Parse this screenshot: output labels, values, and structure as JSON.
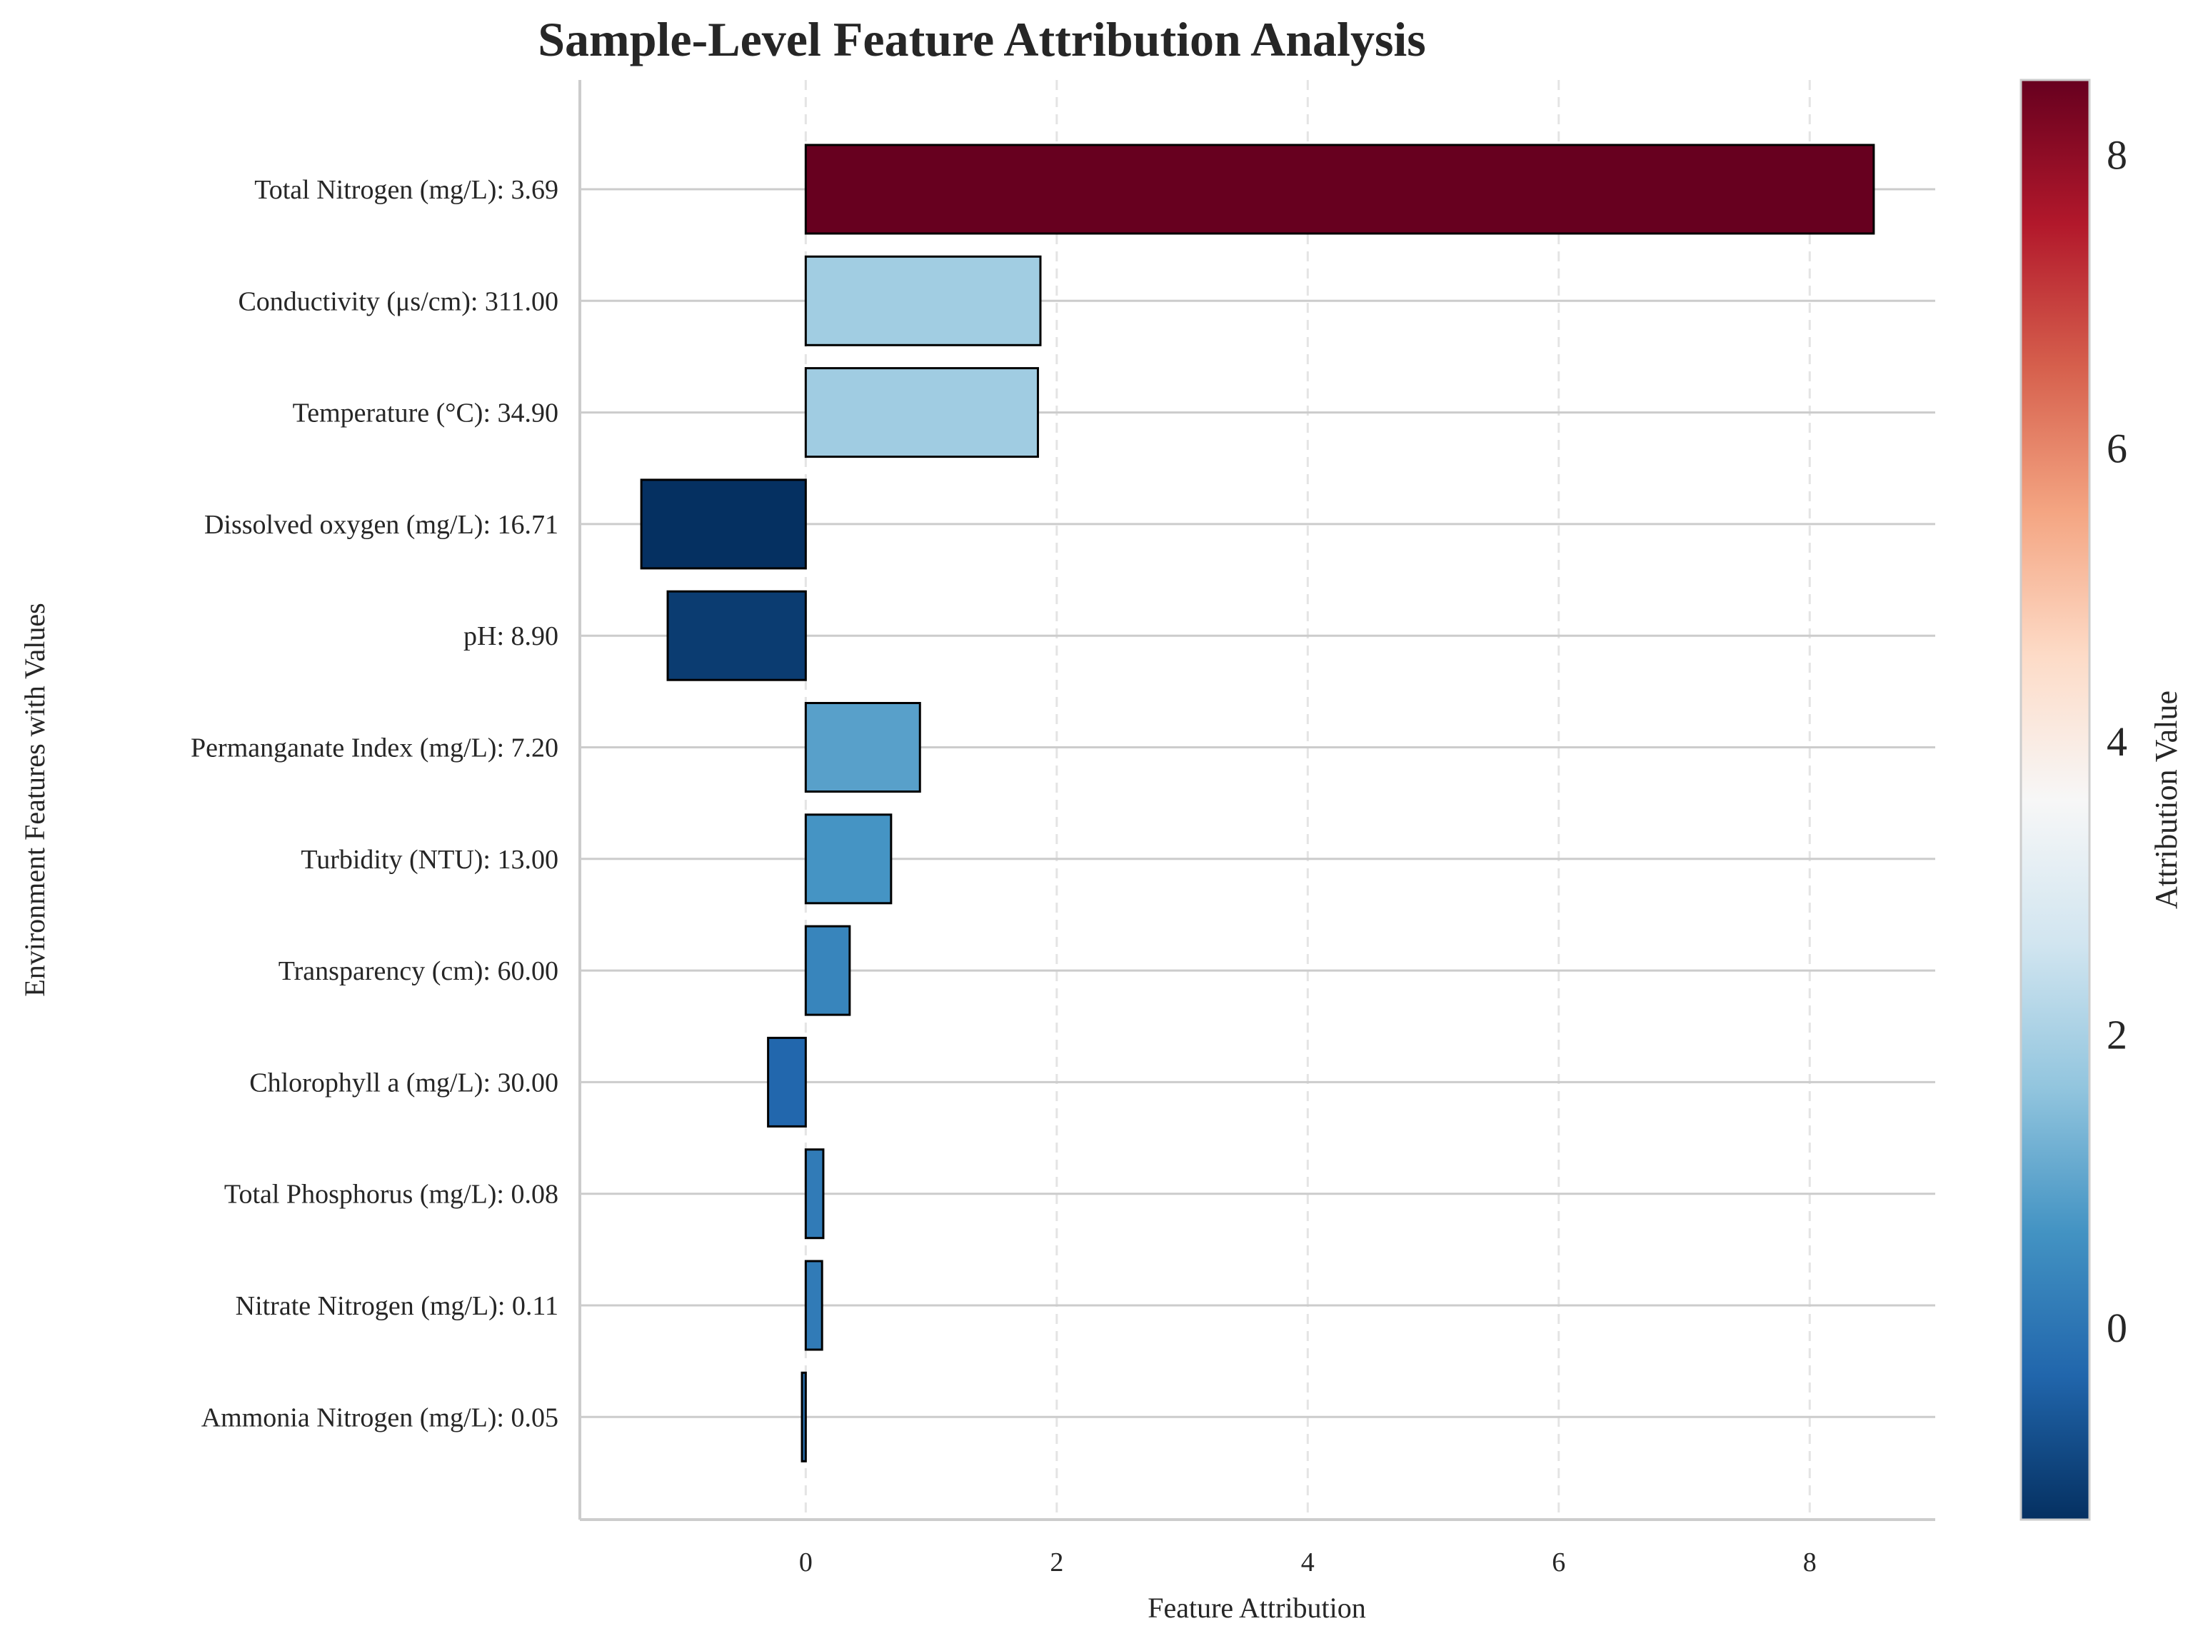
{
  "chart_data": {
    "type": "bar",
    "orientation": "horizontal",
    "title": "Sample-Level Feature Attribution Analysis",
    "xlabel": "Feature Attribution",
    "ylabel": "Environment Features with Values",
    "colorbar_label": "Attribution Value",
    "colormap": "RdBu_r",
    "xlim": [
      -1.8,
      9.0
    ],
    "xticks": [
      0,
      2,
      4,
      6,
      8
    ],
    "colorbar_range": [
      -1.31,
      8.51
    ],
    "colorbar_ticks": [
      0,
      2,
      4,
      6,
      8
    ],
    "grid": true,
    "categories": [
      "Total Nitrogen (mg/L): 3.69",
      "Conductivity (μs/cm): 311.00",
      "Temperature (°C): 34.90",
      "Dissolved oxygen (mg/L): 16.71",
      "pH: 8.90",
      "Permanganate Index (mg/L): 7.20",
      "Turbidity (NTU): 13.00",
      "Transparency (cm): 60.00",
      "Chlorophyll a (mg/L): 30.00",
      "Total Phosphorus (mg/L): 0.08",
      "Nitrate Nitrogen (mg/L): 0.11",
      "Ammonia Nitrogen (mg/L): 0.05"
    ],
    "values": [
      8.51,
      1.87,
      1.85,
      -1.31,
      -1.1,
      0.91,
      0.68,
      0.35,
      -0.3,
      0.14,
      0.13,
      -0.03
    ]
  }
}
